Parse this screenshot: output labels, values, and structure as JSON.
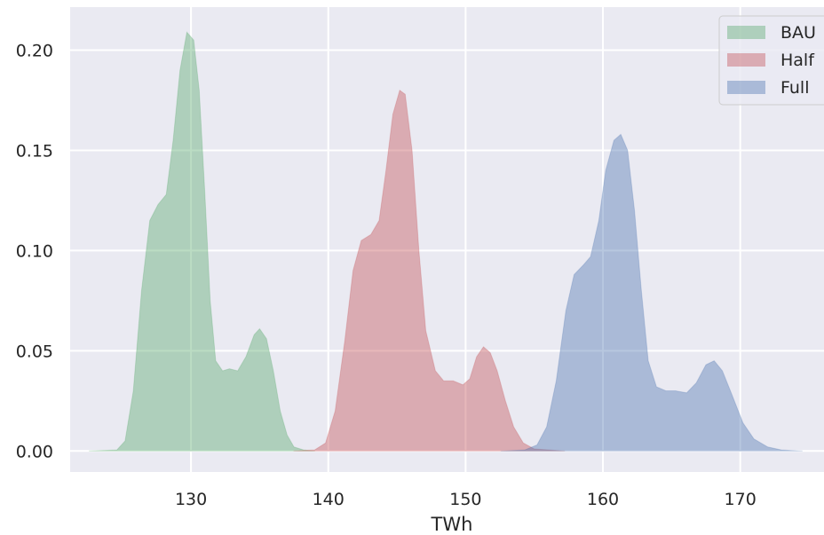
{
  "chart_data": {
    "type": "area",
    "title": "",
    "xlabel": "TWh",
    "ylabel": "",
    "xlim": [
      121.2,
      176.1
    ],
    "ylim": [
      -0.0105,
      0.2215
    ],
    "x_ticks": [
      130,
      140,
      150,
      160,
      170
    ],
    "x_tick_labels": [
      "130",
      "140",
      "150",
      "160",
      "170"
    ],
    "y_ticks": [
      0.0,
      0.05,
      0.1,
      0.15,
      0.2
    ],
    "y_tick_labels": [
      "0.00",
      "0.05",
      "0.10",
      "0.15",
      "0.20"
    ],
    "grid": true,
    "legend_position": "top-right",
    "background": "#eaeaf2",
    "series": [
      {
        "name": "BAU",
        "color": "#55a868",
        "points": [
          [
            122.6,
            0.0
          ],
          [
            124.6,
            0.0005
          ],
          [
            125.2,
            0.005
          ],
          [
            125.8,
            0.03
          ],
          [
            126.4,
            0.08
          ],
          [
            127.0,
            0.115
          ],
          [
            127.6,
            0.123
          ],
          [
            128.2,
            0.128
          ],
          [
            128.7,
            0.155
          ],
          [
            129.2,
            0.19
          ],
          [
            129.7,
            0.209
          ],
          [
            130.2,
            0.205
          ],
          [
            130.6,
            0.18
          ],
          [
            131.0,
            0.13
          ],
          [
            131.4,
            0.075
          ],
          [
            131.8,
            0.045
          ],
          [
            132.3,
            0.04
          ],
          [
            132.8,
            0.041
          ],
          [
            133.4,
            0.04
          ],
          [
            134.0,
            0.047
          ],
          [
            134.6,
            0.058
          ],
          [
            135.0,
            0.061
          ],
          [
            135.5,
            0.056
          ],
          [
            136.0,
            0.04
          ],
          [
            136.5,
            0.02
          ],
          [
            137.0,
            0.008
          ],
          [
            137.5,
            0.002
          ],
          [
            138.2,
            0.0005
          ],
          [
            139.0,
            0.0
          ]
        ]
      },
      {
        "name": "Half",
        "color": "#c44e52",
        "points": [
          [
            137.5,
            0.0
          ],
          [
            139.0,
            0.0005
          ],
          [
            139.8,
            0.004
          ],
          [
            140.5,
            0.02
          ],
          [
            141.2,
            0.055
          ],
          [
            141.8,
            0.09
          ],
          [
            142.4,
            0.105
          ],
          [
            143.1,
            0.108
          ],
          [
            143.7,
            0.115
          ],
          [
            144.2,
            0.14
          ],
          [
            144.7,
            0.168
          ],
          [
            145.2,
            0.18
          ],
          [
            145.6,
            0.178
          ],
          [
            146.1,
            0.15
          ],
          [
            146.6,
            0.1
          ],
          [
            147.1,
            0.06
          ],
          [
            147.8,
            0.04
          ],
          [
            148.4,
            0.035
          ],
          [
            149.1,
            0.035
          ],
          [
            149.8,
            0.033
          ],
          [
            150.3,
            0.036
          ],
          [
            150.8,
            0.047
          ],
          [
            151.3,
            0.052
          ],
          [
            151.8,
            0.049
          ],
          [
            152.3,
            0.04
          ],
          [
            152.9,
            0.025
          ],
          [
            153.5,
            0.012
          ],
          [
            154.2,
            0.004
          ],
          [
            155.0,
            0.001
          ],
          [
            157.2,
            0.0
          ]
        ]
      },
      {
        "name": "Full",
        "color": "#4c72b0",
        "points": [
          [
            152.6,
            0.0
          ],
          [
            154.3,
            0.0005
          ],
          [
            155.2,
            0.003
          ],
          [
            155.9,
            0.012
          ],
          [
            156.6,
            0.035
          ],
          [
            157.3,
            0.07
          ],
          [
            157.9,
            0.088
          ],
          [
            158.6,
            0.093
          ],
          [
            159.1,
            0.097
          ],
          [
            159.7,
            0.115
          ],
          [
            160.2,
            0.14
          ],
          [
            160.8,
            0.155
          ],
          [
            161.3,
            0.158
          ],
          [
            161.8,
            0.15
          ],
          [
            162.3,
            0.12
          ],
          [
            162.8,
            0.08
          ],
          [
            163.3,
            0.045
          ],
          [
            163.9,
            0.032
          ],
          [
            164.6,
            0.03
          ],
          [
            165.3,
            0.03
          ],
          [
            166.1,
            0.029
          ],
          [
            166.8,
            0.034
          ],
          [
            167.5,
            0.043
          ],
          [
            168.1,
            0.045
          ],
          [
            168.7,
            0.04
          ],
          [
            169.4,
            0.028
          ],
          [
            170.2,
            0.014
          ],
          [
            171.0,
            0.006
          ],
          [
            172.0,
            0.002
          ],
          [
            173.0,
            0.0005
          ],
          [
            174.5,
            0.0
          ]
        ]
      }
    ]
  }
}
